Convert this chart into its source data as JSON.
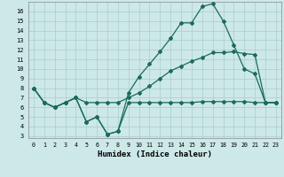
{
  "xlabel": "Humidex (Indice chaleur)",
  "bg_color": "#cde8e8",
  "grid_color": "#aacccc",
  "line_color": "#1a6b5a",
  "xlim": [
    -0.5,
    23.5
  ],
  "ylim": [
    2.8,
    17.0
  ],
  "xticks": [
    0,
    1,
    2,
    3,
    4,
    5,
    6,
    7,
    8,
    9,
    10,
    11,
    12,
    13,
    14,
    15,
    16,
    17,
    18,
    19,
    20,
    21,
    22,
    23
  ],
  "yticks": [
    3,
    4,
    5,
    6,
    7,
    8,
    9,
    10,
    11,
    12,
    13,
    14,
    15,
    16
  ],
  "line1_x": [
    0,
    1,
    2,
    3,
    4,
    5,
    6,
    7,
    8,
    9,
    10,
    11,
    12,
    13,
    14,
    15,
    16,
    17,
    18,
    19,
    20,
    21,
    22,
    23
  ],
  "line1_y": [
    8.0,
    6.5,
    6.0,
    6.5,
    7.0,
    4.5,
    5.0,
    3.2,
    3.5,
    7.5,
    9.2,
    10.5,
    11.8,
    13.2,
    14.8,
    14.8,
    16.5,
    16.8,
    15.0,
    12.5,
    10.0,
    9.5,
    6.5,
    6.5
  ],
  "line2_x": [
    0,
    1,
    2,
    3,
    4,
    5,
    6,
    7,
    8,
    9,
    10,
    11,
    12,
    13,
    14,
    15,
    16,
    17,
    18,
    19,
    20,
    21,
    22,
    23
  ],
  "line2_y": [
    8.0,
    6.5,
    6.0,
    6.5,
    7.0,
    6.5,
    6.5,
    6.5,
    6.5,
    7.0,
    7.5,
    8.2,
    9.0,
    9.8,
    10.3,
    10.8,
    11.2,
    11.7,
    11.7,
    11.8,
    11.6,
    11.5,
    6.5,
    6.5
  ],
  "line3_x": [
    0,
    1,
    2,
    3,
    4,
    5,
    6,
    7,
    8,
    9,
    10,
    11,
    12,
    13,
    14,
    15,
    16,
    17,
    18,
    19,
    20,
    21,
    22,
    23
  ],
  "line3_y": [
    8.0,
    6.5,
    6.0,
    6.5,
    7.0,
    4.5,
    5.0,
    3.2,
    3.5,
    6.5,
    6.5,
    6.5,
    6.5,
    6.5,
    6.5,
    6.5,
    6.6,
    6.6,
    6.6,
    6.6,
    6.6,
    6.5,
    6.5,
    6.5
  ]
}
